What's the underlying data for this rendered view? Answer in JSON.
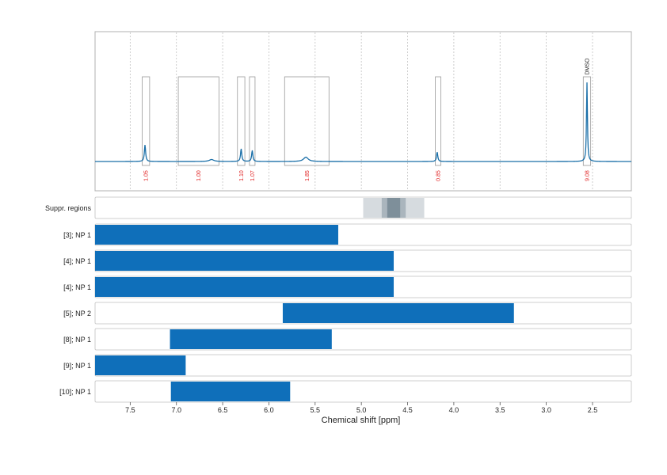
{
  "chart_data": {
    "type": "spectrum-with-ranges",
    "xlabel": "Chemical shift [ppm]",
    "xlim": [
      7.88,
      2.08
    ],
    "x_ticks": [
      {
        "value": 7.5,
        "label": "7.5"
      },
      {
        "value": 7.0,
        "label": "7.0"
      },
      {
        "value": 6.5,
        "label": "6.5"
      },
      {
        "value": 6.0,
        "label": "6.0"
      },
      {
        "value": 5.5,
        "label": "5.5"
      },
      {
        "value": 5.0,
        "label": "5.0"
      },
      {
        "value": 4.5,
        "label": "4.5"
      },
      {
        "value": 4.0,
        "label": "4.0"
      },
      {
        "value": 3.5,
        "label": "3.5"
      },
      {
        "value": 3.0,
        "label": "3.0"
      },
      {
        "value": 2.5,
        "label": "2.5"
      }
    ],
    "grid_lines": [
      7.5,
      7.0,
      6.5,
      6.0,
      5.5,
      5.0,
      4.5,
      4.0,
      3.5,
      3.0,
      2.5
    ],
    "spectrum": {
      "color": "#1a6fa8",
      "peaks": [
        {
          "ppm": 7.34,
          "height": 0.21
        },
        {
          "ppm": 6.62,
          "height": 0.025
        },
        {
          "ppm": 6.3,
          "height": 0.16
        },
        {
          "ppm": 6.18,
          "height": 0.14
        },
        {
          "ppm": 5.6,
          "height": 0.055
        },
        {
          "ppm": 4.18,
          "height": 0.12
        },
        {
          "ppm": 2.56,
          "height": 1.0
        }
      ]
    },
    "integration_regions": [
      {
        "start": 7.37,
        "end": 7.29,
        "label": "1.05",
        "top": 0.8
      },
      {
        "start": 6.98,
        "end": 6.54,
        "label": "1.00",
        "top": 0.8
      },
      {
        "start": 6.34,
        "end": 6.26,
        "label": "1.10",
        "top": 0.8
      },
      {
        "start": 6.21,
        "end": 6.15,
        "label": "1.07",
        "top": 0.8
      },
      {
        "start": 5.83,
        "end": 5.35,
        "label": "1.85",
        "top": 0.8
      },
      {
        "start": 4.2,
        "end": 4.14,
        "label": "0.85",
        "top": 0.8
      },
      {
        "start": 2.6,
        "end": 2.52,
        "label": "9.08",
        "top": 0.8
      }
    ],
    "solvent_label": {
      "ppm": 2.56,
      "text": "DMSO"
    },
    "suppressed_regions": {
      "label": "Suppr. regions",
      "bands": [
        {
          "start": 4.98,
          "end": 4.32,
          "opacity": 0.25
        },
        {
          "start": 4.78,
          "end": 4.52,
          "opacity": 0.35
        },
        {
          "start": 4.72,
          "end": 4.58,
          "opacity": 0.55
        }
      ],
      "color": "#5a6f7e"
    },
    "bar_color": "#0f6fba",
    "range_rows": [
      {
        "label": "[3]; NP 1",
        "start": 7.88,
        "end": 5.25
      },
      {
        "label": "[4]; NP 1",
        "start": 7.88,
        "end": 4.65
      },
      {
        "label": "[4]; NP 1",
        "start": 7.88,
        "end": 4.65
      },
      {
        "label": "[5]; NP 2",
        "start": 5.85,
        "end": 3.35
      },
      {
        "label": "[8]; NP 1",
        "start": 7.07,
        "end": 5.32
      },
      {
        "label": "[9]; NP 1",
        "start": 7.88,
        "end": 6.9
      },
      {
        "label": "[10]; NP 1",
        "start": 7.06,
        "end": 5.77
      }
    ]
  }
}
